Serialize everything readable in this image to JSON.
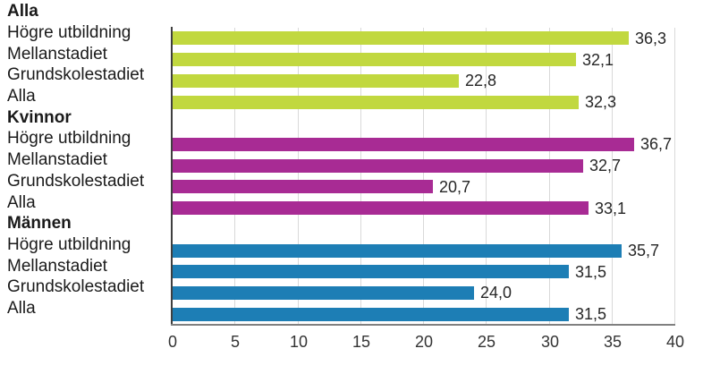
{
  "chart_data": {
    "type": "bar",
    "orientation": "horizontal",
    "title": "",
    "xlabel": "",
    "ylabel": "",
    "xlim": [
      0,
      40
    ],
    "x_ticks": [
      0,
      5,
      10,
      15,
      20,
      25,
      30,
      35,
      40
    ],
    "grid": true,
    "legend_position": "none",
    "decimal_separator": ",",
    "groups": [
      {
        "label": "Alla",
        "color": "#c1d83f",
        "bars": [
          {
            "label": "Högre utbildning",
            "value": 36.3,
            "value_label": "36,3"
          },
          {
            "label": "Mellanstadiet",
            "value": 32.1,
            "value_label": "32,1"
          },
          {
            "label": "Grundskolestadiet",
            "value": 22.8,
            "value_label": "22,8"
          },
          {
            "label": "Alla",
            "value": 32.3,
            "value_label": "32,3"
          }
        ]
      },
      {
        "label": "Kvinnor",
        "color": "#a82b94",
        "bars": [
          {
            "label": "Högre utbildning",
            "value": 36.7,
            "value_label": "36,7"
          },
          {
            "label": "Mellanstadiet",
            "value": 32.7,
            "value_label": "32,7"
          },
          {
            "label": "Grundskolestadiet",
            "value": 20.7,
            "value_label": "20,7"
          },
          {
            "label": "Alla",
            "value": 33.1,
            "value_label": "33,1"
          }
        ]
      },
      {
        "label": "Männen",
        "color": "#1d7eb5",
        "bars": [
          {
            "label": "Högre utbildning",
            "value": 35.7,
            "value_label": "35,7"
          },
          {
            "label": "Mellanstadiet",
            "value": 31.5,
            "value_label": "31,5"
          },
          {
            "label": "Grundskolestadiet",
            "value": 24.0,
            "value_label": "24,0"
          },
          {
            "label": "Alla",
            "value": 31.5,
            "value_label": "31,5"
          }
        ]
      }
    ]
  },
  "colors": {
    "background": "#ffffff",
    "gridline": "#d9d9d9",
    "y_axis_line": "#3f3f3f",
    "x_axis_line": "#808080",
    "text": "#1a1a1a",
    "value_text": "#262626",
    "tick_text": "#333333"
  }
}
